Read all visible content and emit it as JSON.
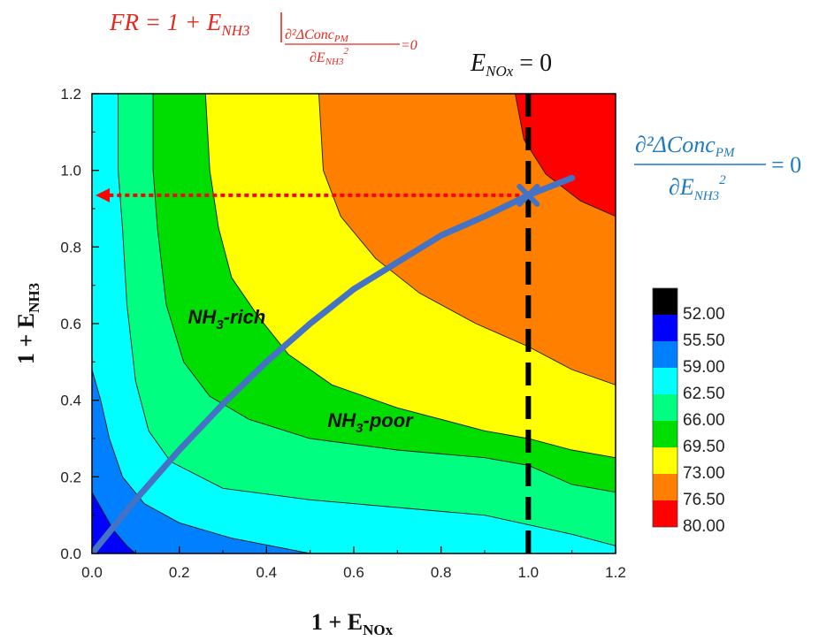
{
  "chart_data": {
    "type": "heatmap",
    "subtype": "filled-contour",
    "title": "",
    "xlabel": {
      "main": "1 + E",
      "sub": "NOx"
    },
    "ylabel": {
      "main": "1 + E",
      "sub": "NH3"
    },
    "xlim": [
      0.0,
      1.2
    ],
    "ylim": [
      0.0,
      1.2
    ],
    "x_ticks": [
      "0.0",
      "0.2",
      "0.4",
      "0.6",
      "0.8",
      "1.0",
      "1.2"
    ],
    "y_ticks": [
      "0.0",
      "0.2",
      "0.4",
      "0.6",
      "0.8",
      "1.0",
      "1.2"
    ],
    "grid": false,
    "colorbar": {
      "placement": "right",
      "levels": [
        "52.00",
        "55.50",
        "59.00",
        "62.50",
        "66.00",
        "69.50",
        "73.00",
        "76.50",
        "80.00"
      ],
      "colors": [
        "#000000",
        "#0000ff",
        "#0080ff",
        "#00ffff",
        "#00ff80",
        "#00dd00",
        "#ffff00",
        "#ff8000",
        "#ff0000"
      ]
    },
    "contour_boundaries": [
      {
        "level": 55.5,
        "points": [
          [
            0.0,
            0.16
          ],
          [
            0.02,
            0.12
          ],
          [
            0.05,
            0.06
          ],
          [
            0.08,
            0.02
          ],
          [
            0.1,
            0.0
          ]
        ]
      },
      {
        "level": 59.0,
        "points": [
          [
            0.0,
            0.48
          ],
          [
            0.02,
            0.4
          ],
          [
            0.04,
            0.3
          ],
          [
            0.07,
            0.2
          ],
          [
            0.12,
            0.13
          ],
          [
            0.2,
            0.08
          ],
          [
            0.32,
            0.04
          ],
          [
            0.5,
            0.0
          ]
        ]
      },
      {
        "level": 62.5,
        "points": [
          [
            0.06,
            1.2
          ],
          [
            0.06,
            1.0
          ],
          [
            0.07,
            0.85
          ],
          [
            0.08,
            0.65
          ],
          [
            0.1,
            0.45
          ],
          [
            0.13,
            0.32
          ],
          [
            0.18,
            0.24
          ],
          [
            0.3,
            0.17
          ],
          [
            0.5,
            0.14
          ],
          [
            0.7,
            0.12
          ],
          [
            0.9,
            0.1
          ],
          [
            1.1,
            0.05
          ],
          [
            1.2,
            0.02
          ]
        ]
      },
      {
        "level": 66.0,
        "points": [
          [
            0.14,
            1.2
          ],
          [
            0.14,
            1.0
          ],
          [
            0.15,
            0.85
          ],
          [
            0.17,
            0.65
          ],
          [
            0.21,
            0.5
          ],
          [
            0.27,
            0.41
          ],
          [
            0.36,
            0.35
          ],
          [
            0.5,
            0.3
          ],
          [
            0.7,
            0.27
          ],
          [
            0.9,
            0.25
          ],
          [
            1.0,
            0.23
          ],
          [
            1.1,
            0.18
          ],
          [
            1.2,
            0.16
          ]
        ]
      },
      {
        "level": 69.5,
        "points": [
          [
            0.26,
            1.2
          ],
          [
            0.27,
            1.0
          ],
          [
            0.29,
            0.85
          ],
          [
            0.32,
            0.72
          ],
          [
            0.38,
            0.62
          ],
          [
            0.45,
            0.52
          ],
          [
            0.55,
            0.44
          ],
          [
            0.7,
            0.38
          ],
          [
            0.9,
            0.32
          ],
          [
            1.0,
            0.3
          ],
          [
            1.1,
            0.27
          ],
          [
            1.2,
            0.25
          ]
        ]
      },
      {
        "level": 73.0,
        "points": [
          [
            0.52,
            1.2
          ],
          [
            0.53,
            1.0
          ],
          [
            0.57,
            0.88
          ],
          [
            0.65,
            0.77
          ],
          [
            0.75,
            0.68
          ],
          [
            0.88,
            0.6
          ],
          [
            1.0,
            0.54
          ],
          [
            1.1,
            0.48
          ],
          [
            1.2,
            0.44
          ]
        ]
      },
      {
        "level": 76.5,
        "points": [
          [
            0.97,
            1.2
          ],
          [
            0.99,
            1.08
          ],
          [
            1.04,
            0.99
          ],
          [
            1.12,
            0.92
          ],
          [
            1.2,
            0.88
          ]
        ]
      }
    ],
    "curve": {
      "color": "#4472c4",
      "points": [
        [
          0.0,
          0.0
        ],
        [
          0.1,
          0.14
        ],
        [
          0.2,
          0.27
        ],
        [
          0.3,
          0.39
        ],
        [
          0.4,
          0.5
        ],
        [
          0.5,
          0.6
        ],
        [
          0.6,
          0.69
        ],
        [
          0.7,
          0.76
        ],
        [
          0.8,
          0.83
        ],
        [
          0.9,
          0.88
        ],
        [
          1.0,
          0.935
        ],
        [
          1.1,
          0.98
        ]
      ]
    },
    "marker": {
      "x": 1.0,
      "y": 0.935,
      "color": "#4472c4"
    },
    "vline": {
      "x": 1.0,
      "style": "dashed",
      "color": "#000000"
    },
    "hline_arrow": {
      "y": 0.935,
      "from_x": 1.0,
      "to_x": 0.0,
      "style": "dotted",
      "color": "#ff0000"
    },
    "region_labels": [
      {
        "base": "NH",
        "sub": "3",
        "rest": "-rich",
        "x": 0.22,
        "y": 0.6
      },
      {
        "base": "NH",
        "sub": "3",
        "rest": "-poor",
        "x": 0.54,
        "y": 0.33
      }
    ],
    "annotations": {
      "fr_formula": {
        "left": "FR = 1 + E",
        "sub": "NH3",
        "cond_num": "∂²ΔConc",
        "cond_num_sub": "PM",
        "cond_den": "∂E",
        "cond_den_sub": "NH3",
        "cond_den_sup": "2",
        "cond_eq": "=0",
        "color": "#e8281e"
      },
      "enox": {
        "left": "E",
        "sub": "NOx",
        "right": " = 0",
        "color": "#111111"
      },
      "second_derivative": {
        "num": "∂²ΔConc",
        "num_sub": "PM",
        "den": "∂E",
        "den_sub": "NH3",
        "den_sup": "2",
        "eq": "= 0",
        "color": "#1f7ac0"
      }
    }
  }
}
